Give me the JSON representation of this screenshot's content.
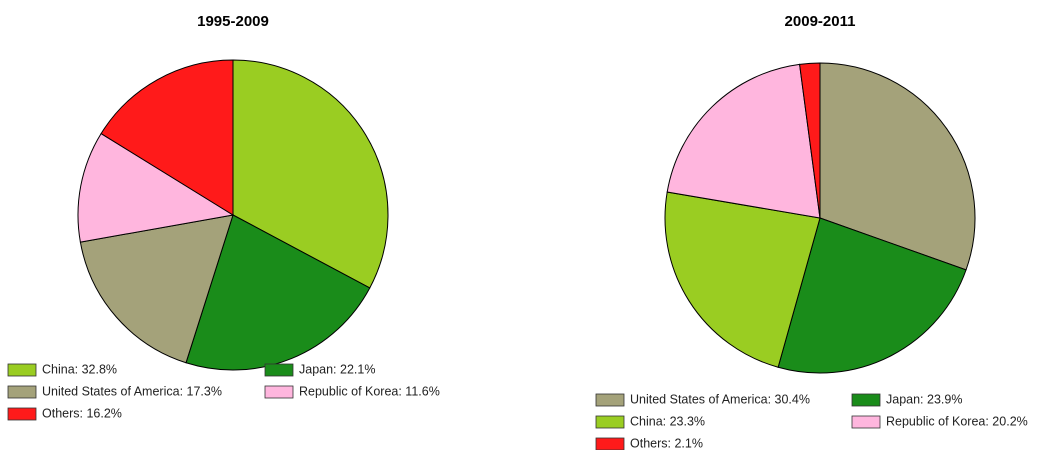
{
  "chart_data": [
    {
      "type": "pie",
      "title": "1995-2009",
      "labels": [
        "China: 32.8%",
        "Japan: 22.1%",
        "United States of America: 17.3%",
        "Republic of Korea: 11.6%",
        "Others: 16.2%"
      ],
      "values": [
        32.8,
        22.1,
        17.3,
        11.6,
        16.2
      ],
      "colors": [
        "#9acd22",
        "#1a8c1a",
        "#a4a27a",
        "#ffb6de",
        "#ff1a1a"
      ]
    },
    {
      "type": "pie",
      "title": "2009-2011",
      "labels": [
        "United States of America: 30.4%",
        "Japan: 23.9%",
        "China: 23.3%",
        "Republic of Korea: 20.2%",
        "Others: 2.1%"
      ],
      "values": [
        30.4,
        23.9,
        23.3,
        20.2,
        2.1
      ],
      "colors": [
        "#a4a27a",
        "#1a8c1a",
        "#9acd22",
        "#ffb6de",
        "#ff1a1a"
      ]
    }
  ]
}
